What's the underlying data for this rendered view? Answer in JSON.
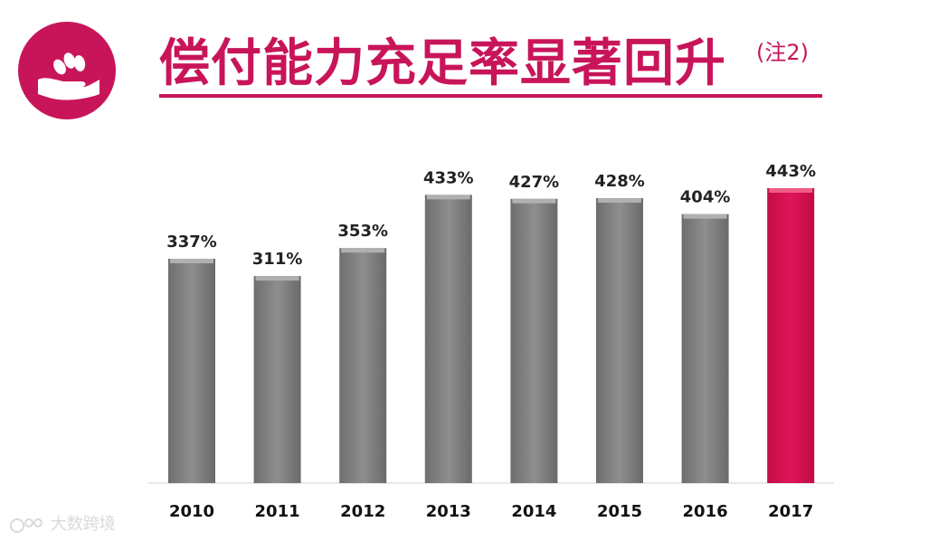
{
  "title": "偿付能力充足率显著回升",
  "title_note": "(注2)",
  "logo_icon": "hand-coins-icon",
  "accent_color": "#c8155a",
  "bar_color": "#808080",
  "highlight_color": "#d6104f",
  "watermark": "大数跨境",
  "chart_data": {
    "type": "bar",
    "title": "偿付能力充足率显著回升",
    "categories": [
      "2010",
      "2011",
      "2012",
      "2013",
      "2014",
      "2015",
      "2016",
      "2017"
    ],
    "values": [
      337,
      311,
      353,
      433,
      427,
      428,
      404,
      443
    ],
    "value_labels": [
      "337%",
      "311%",
      "353%",
      "433%",
      "427%",
      "428%",
      "404%",
      "443%"
    ],
    "highlight_index": 7,
    "unit": "%",
    "xlabel": "",
    "ylabel": "",
    "ylim": [
      0,
      470
    ],
    "grid": false,
    "legend": "none"
  }
}
